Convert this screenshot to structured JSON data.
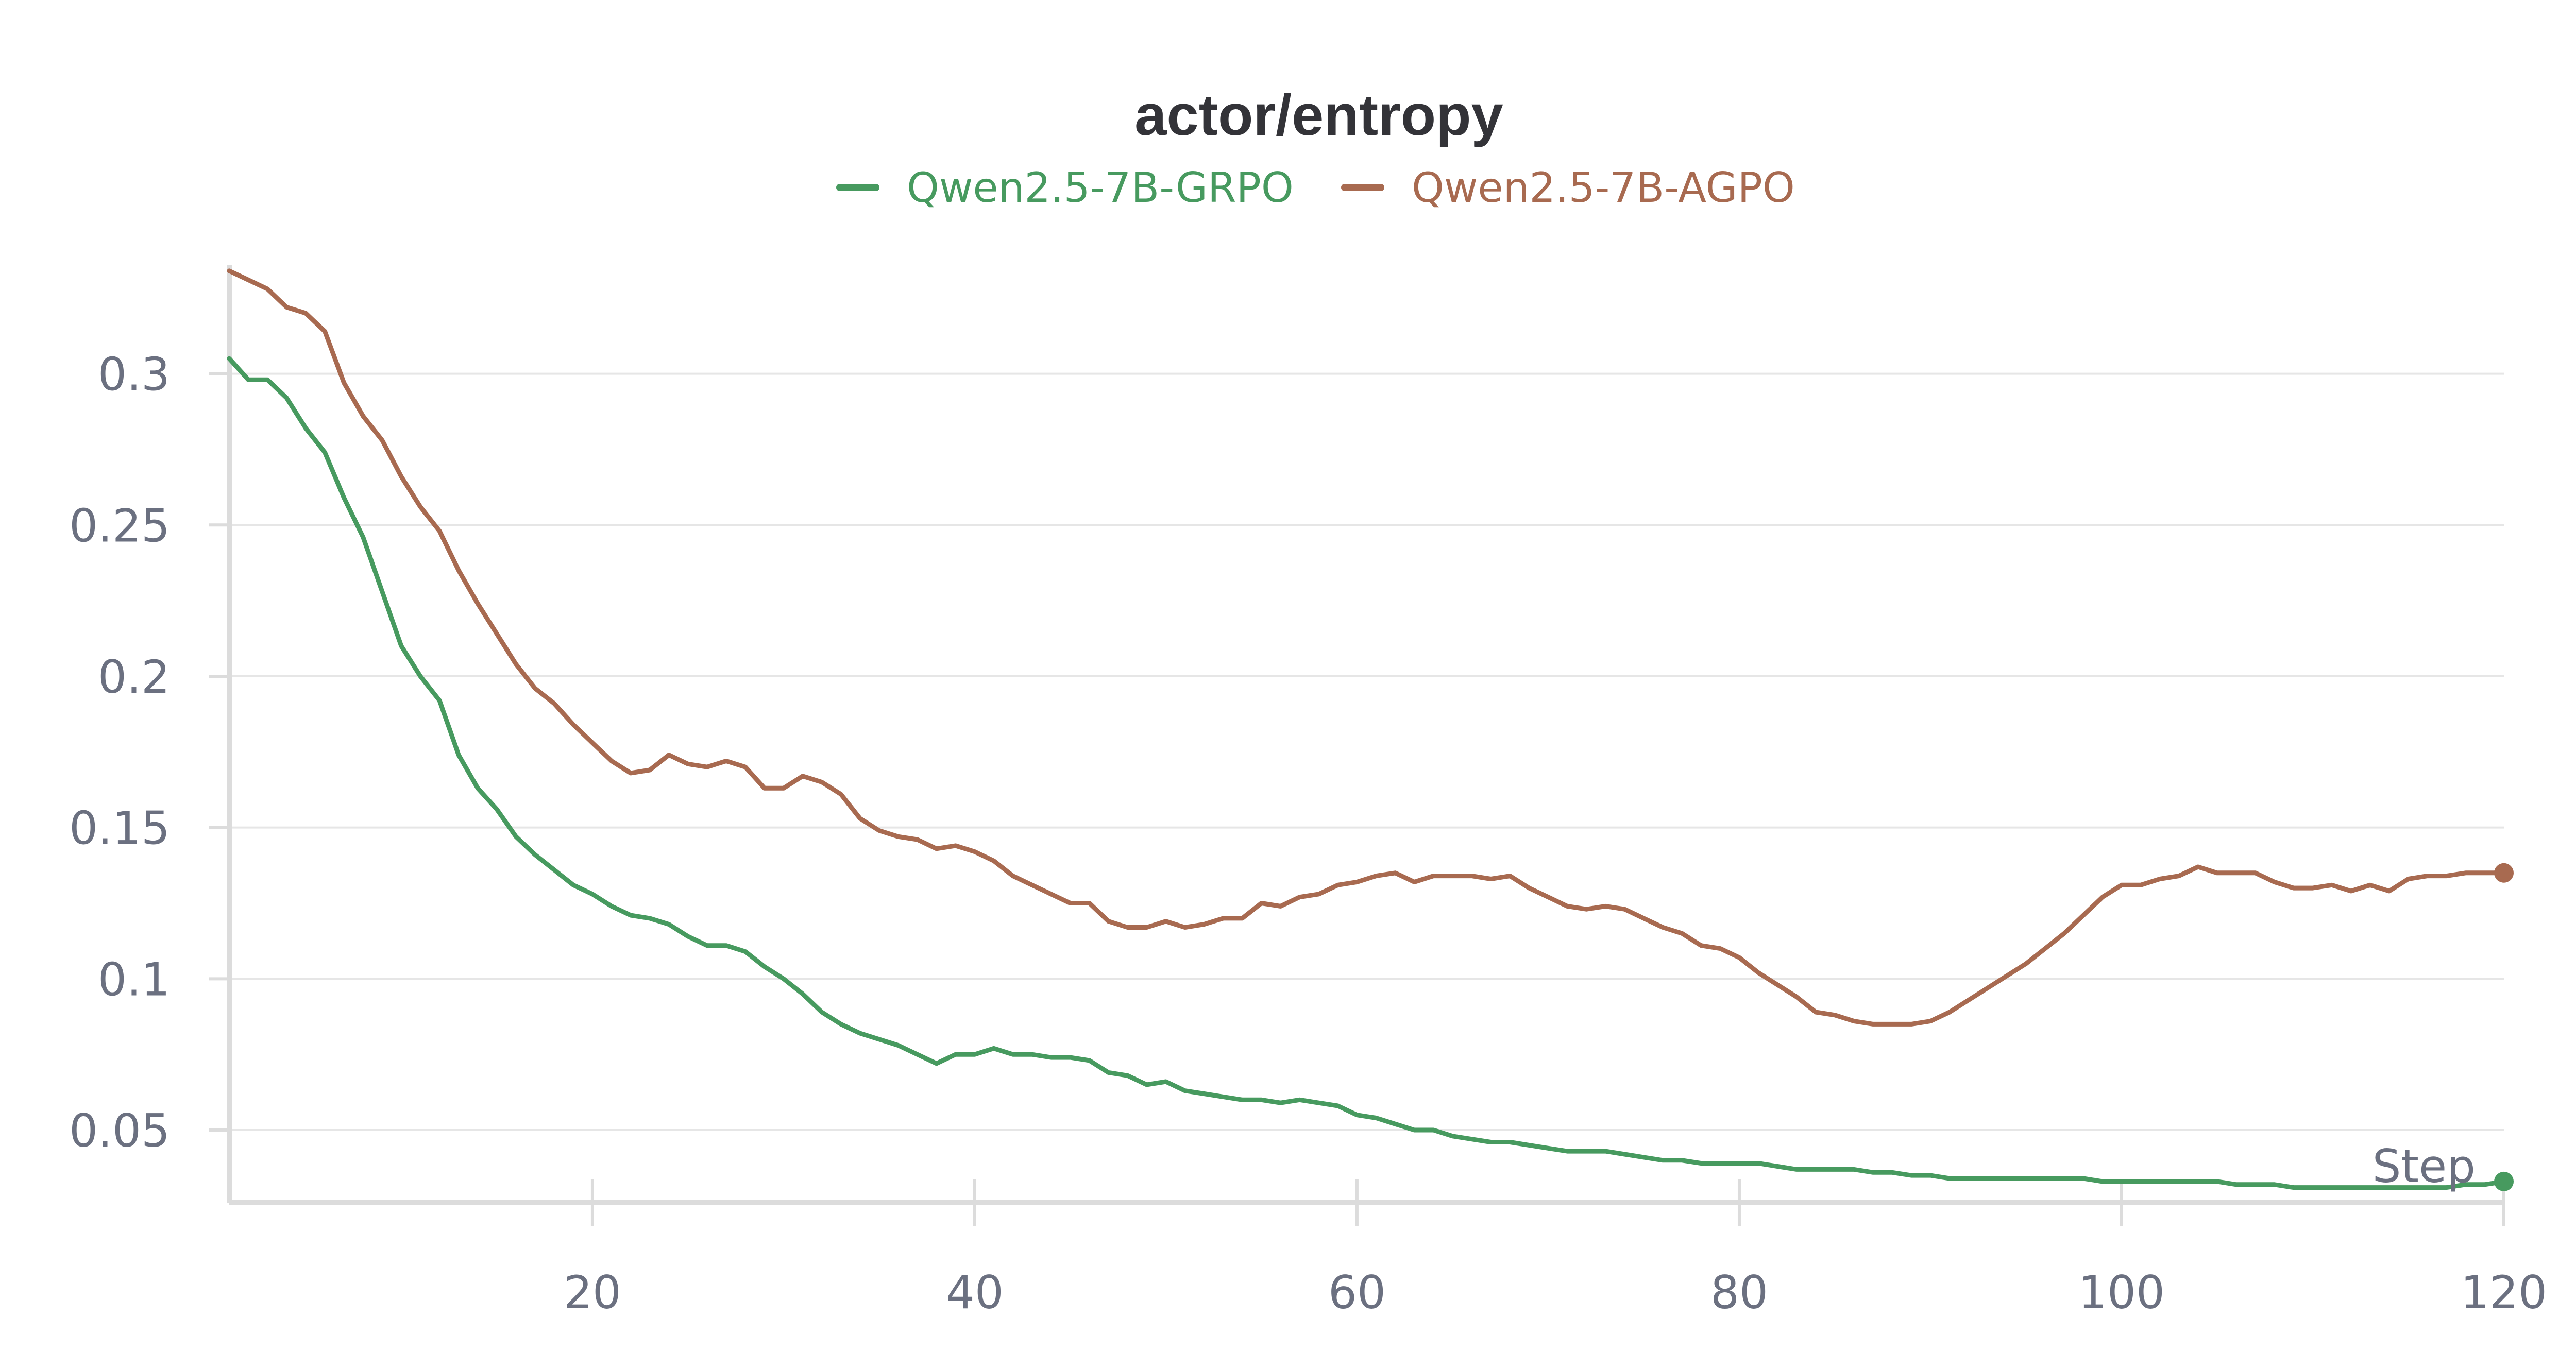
{
  "chart_data": {
    "type": "line",
    "title": "actor/entropy",
    "xlabel": "Step",
    "ylabel": "",
    "xlim": [
      1,
      120
    ],
    "ylim": [
      0.026,
      0.335
    ],
    "xticks": [
      20,
      40,
      60,
      80,
      100,
      120
    ],
    "xtick_labels": [
      "20",
      "40",
      "60",
      "80",
      "100",
      "120"
    ],
    "yticks": [
      0.05,
      0.1,
      0.15,
      0.2,
      0.25,
      0.3
    ],
    "ytick_labels": [
      "0.05",
      "0.1",
      "0.15",
      "0.2",
      "0.25",
      "0.3"
    ],
    "grid": true,
    "legend_position": "top-center",
    "series": [
      {
        "name": "Qwen2.5-7B-GRPO",
        "color": "#479a5f",
        "x": [
          1,
          2,
          3,
          4,
          5,
          6,
          7,
          8,
          9,
          10,
          11,
          12,
          13,
          14,
          15,
          16,
          17,
          18,
          19,
          20,
          21,
          22,
          23,
          24,
          25,
          26,
          27,
          28,
          29,
          30,
          31,
          32,
          33,
          34,
          35,
          36,
          37,
          38,
          39,
          40,
          41,
          42,
          43,
          44,
          45,
          46,
          47,
          48,
          49,
          50,
          51,
          52,
          53,
          54,
          55,
          56,
          57,
          58,
          59,
          60,
          61,
          62,
          63,
          64,
          65,
          66,
          67,
          68,
          69,
          70,
          71,
          72,
          73,
          74,
          75,
          76,
          77,
          78,
          79,
          80,
          81,
          82,
          83,
          84,
          85,
          86,
          87,
          88,
          89,
          90,
          91,
          92,
          93,
          94,
          95,
          96,
          97,
          98,
          99,
          100,
          101,
          102,
          103,
          104,
          105,
          106,
          107,
          108,
          109,
          110,
          111,
          112,
          113,
          114,
          115,
          116,
          117,
          118,
          119,
          120
        ],
        "values": [
          0.305,
          0.298,
          0.298,
          0.292,
          0.282,
          0.274,
          0.259,
          0.246,
          0.228,
          0.21,
          0.2,
          0.192,
          0.174,
          0.163,
          0.156,
          0.147,
          0.141,
          0.136,
          0.131,
          0.128,
          0.124,
          0.121,
          0.12,
          0.118,
          0.114,
          0.111,
          0.111,
          0.109,
          0.104,
          0.1,
          0.095,
          0.089,
          0.085,
          0.082,
          0.08,
          0.078,
          0.075,
          0.072,
          0.075,
          0.075,
          0.077,
          0.075,
          0.075,
          0.074,
          0.074,
          0.073,
          0.069,
          0.068,
          0.065,
          0.066,
          0.063,
          0.062,
          0.061,
          0.06,
          0.06,
          0.059,
          0.06,
          0.059,
          0.058,
          0.055,
          0.054,
          0.052,
          0.05,
          0.05,
          0.048,
          0.047,
          0.046,
          0.046,
          0.045,
          0.044,
          0.043,
          0.043,
          0.043,
          0.042,
          0.041,
          0.04,
          0.04,
          0.039,
          0.039,
          0.039,
          0.039,
          0.038,
          0.037,
          0.037,
          0.037,
          0.037,
          0.036,
          0.036,
          0.035,
          0.035,
          0.034,
          0.034,
          0.034,
          0.034,
          0.034,
          0.034,
          0.034,
          0.034,
          0.033,
          0.033,
          0.033,
          0.033,
          0.033,
          0.033,
          0.033,
          0.032,
          0.032,
          0.032,
          0.031,
          0.031,
          0.031,
          0.031,
          0.031,
          0.031,
          0.031,
          0.031,
          0.031,
          0.032,
          0.032,
          0.033
        ]
      },
      {
        "name": "Qwen2.5-7B-AGPO",
        "color": "#a86a50",
        "x": [
          1,
          2,
          3,
          4,
          5,
          6,
          7,
          8,
          9,
          10,
          11,
          12,
          13,
          14,
          15,
          16,
          17,
          18,
          19,
          20,
          21,
          22,
          23,
          24,
          25,
          26,
          27,
          28,
          29,
          30,
          31,
          32,
          33,
          34,
          35,
          36,
          37,
          38,
          39,
          40,
          41,
          42,
          43,
          44,
          45,
          46,
          47,
          48,
          49,
          50,
          51,
          52,
          53,
          54,
          55,
          56,
          57,
          58,
          59,
          60,
          61,
          62,
          63,
          64,
          65,
          66,
          67,
          68,
          69,
          70,
          71,
          72,
          73,
          74,
          75,
          76,
          77,
          78,
          79,
          80,
          81,
          82,
          83,
          84,
          85,
          86,
          87,
          88,
          89,
          90,
          91,
          92,
          93,
          94,
          95,
          96,
          97,
          98,
          99,
          100,
          101,
          102,
          103,
          104,
          105,
          106,
          107,
          108,
          109,
          110,
          111,
          112,
          113,
          114,
          115,
          116,
          117,
          118,
          119,
          120
        ],
        "values": [
          0.334,
          0.331,
          0.328,
          0.322,
          0.32,
          0.314,
          0.297,
          0.286,
          0.278,
          0.266,
          0.256,
          0.248,
          0.235,
          0.224,
          0.214,
          0.204,
          0.196,
          0.191,
          0.184,
          0.178,
          0.172,
          0.168,
          0.169,
          0.174,
          0.171,
          0.17,
          0.172,
          0.17,
          0.163,
          0.163,
          0.167,
          0.165,
          0.161,
          0.153,
          0.149,
          0.147,
          0.146,
          0.143,
          0.144,
          0.142,
          0.139,
          0.134,
          0.131,
          0.128,
          0.125,
          0.125,
          0.119,
          0.117,
          0.117,
          0.119,
          0.117,
          0.118,
          0.12,
          0.12,
          0.125,
          0.124,
          0.127,
          0.128,
          0.131,
          0.132,
          0.134,
          0.135,
          0.132,
          0.134,
          0.134,
          0.134,
          0.133,
          0.134,
          0.13,
          0.127,
          0.124,
          0.123,
          0.124,
          0.123,
          0.12,
          0.117,
          0.115,
          0.111,
          0.11,
          0.107,
          0.102,
          0.098,
          0.094,
          0.089,
          0.088,
          0.086,
          0.085,
          0.085,
          0.085,
          0.086,
          0.089,
          0.093,
          0.097,
          0.101,
          0.105,
          0.11,
          0.115,
          0.121,
          0.127,
          0.131,
          0.131,
          0.133,
          0.134,
          0.137,
          0.135,
          0.135,
          0.135,
          0.132,
          0.13,
          0.13,
          0.131,
          0.129,
          0.131,
          0.129,
          0.133,
          0.134,
          0.134,
          0.135,
          0.135,
          0.135
        ]
      }
    ]
  }
}
